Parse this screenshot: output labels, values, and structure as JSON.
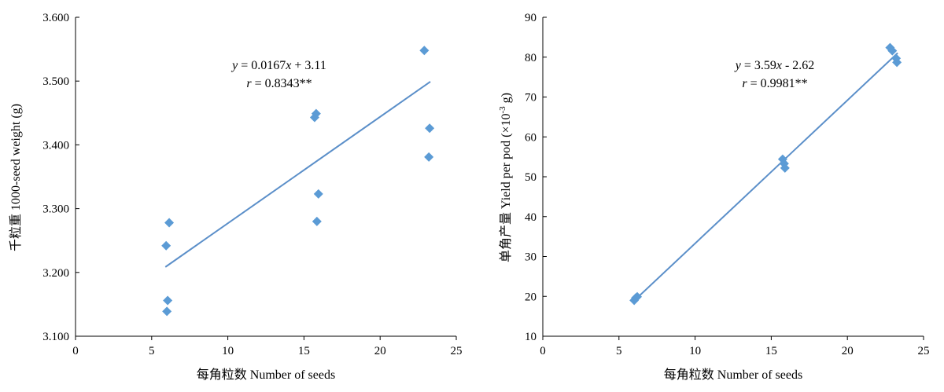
{
  "chart_data": [
    {
      "type": "scatter",
      "xlabel": "每角粒数 Number of seeds",
      "ylabel": "千粒重 1000-seed weight (g)",
      "xlim": [
        0,
        25
      ],
      "ylim": [
        3.1,
        3.6
      ],
      "xticks": [
        "0",
        "5",
        "10",
        "15",
        "20",
        "25"
      ],
      "yticks": [
        "3.100",
        "3.200",
        "3.300",
        "3.400",
        "3.500",
        "3.600"
      ],
      "grid": false,
      "points_color": "#5b9bd5",
      "trend_color": "#5b8fc9",
      "points": [
        {
          "x": 6.0,
          "y": 3.139
        },
        {
          "x": 6.05,
          "y": 3.156
        },
        {
          "x": 5.95,
          "y": 3.242
        },
        {
          "x": 6.15,
          "y": 3.278
        },
        {
          "x": 15.7,
          "y": 3.443
        },
        {
          "x": 15.8,
          "y": 3.449
        },
        {
          "x": 15.85,
          "y": 3.28
        },
        {
          "x": 15.95,
          "y": 3.323
        },
        {
          "x": 22.9,
          "y": 3.548
        },
        {
          "x": 23.25,
          "y": 3.426
        },
        {
          "x": 23.2,
          "y": 3.381
        }
      ],
      "trendline": {
        "x_start": 5.9,
        "x_end": 23.3,
        "slope": 0.0167,
        "intercept": 3.11
      },
      "annotations": {
        "equation": [
          "y",
          " = 0.0167",
          "x",
          " + 3.11"
        ],
        "correlation": [
          "r",
          " = 0.8343**"
        ]
      }
    },
    {
      "type": "scatter",
      "xlabel": "每角粒数 Number of seeds",
      "ylabel": [
        "单角产量 Yield per pod (×10",
        "-3",
        " g)"
      ],
      "xlim": [
        0,
        25
      ],
      "ylim": [
        10,
        90
      ],
      "xticks": [
        "0",
        "5",
        "10",
        "15",
        "20",
        "25"
      ],
      "yticks": [
        "10",
        "20",
        "30",
        "40",
        "50",
        "60",
        "70",
        "80",
        "90"
      ],
      "grid": false,
      "points_color": "#5b9bd5",
      "trend_color": "#5b8fc9",
      "points": [
        {
          "x": 6.0,
          "y": 19.0
        },
        {
          "x": 6.1,
          "y": 19.6
        },
        {
          "x": 6.2,
          "y": 19.9
        },
        {
          "x": 15.75,
          "y": 54.4
        },
        {
          "x": 15.85,
          "y": 53.3
        },
        {
          "x": 15.9,
          "y": 52.2
        },
        {
          "x": 22.8,
          "y": 82.4
        },
        {
          "x": 22.95,
          "y": 81.6
        },
        {
          "x": 23.2,
          "y": 79.7
        },
        {
          "x": 23.25,
          "y": 78.7
        }
      ],
      "trendline": {
        "x_start": 5.9,
        "x_end": 23.3,
        "slope": 3.59,
        "intercept": -2.62
      },
      "annotations": {
        "equation": [
          "y",
          " = 3.59",
          "x",
          " - 2.62"
        ],
        "correlation": [
          "r",
          " = 0.9981**"
        ]
      }
    }
  ]
}
